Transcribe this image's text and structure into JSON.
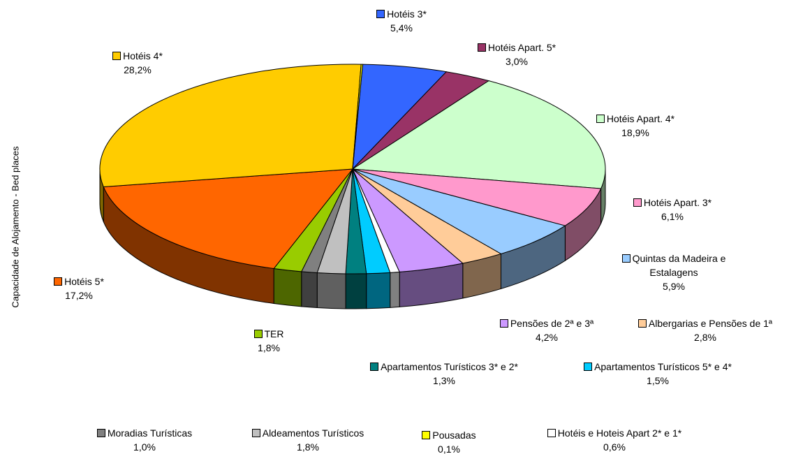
{
  "chart_data": {
    "type": "pie3d",
    "y_axis_label": "Capacidade de Alojamento - Bed places",
    "categories": [
      "Hotéis 3*",
      "Hotéis Apart. 5*",
      "Hotéis Apart. 4*",
      "Hotéis Apart. 3*",
      "Quintas da Madeira e Estalagens",
      "Albergarias e Pensões de 1ª",
      "Pensões de 2ª e 3ª",
      "Hotéis e Hoteis Apart 2* e 1*",
      "Apartamentos Turísticos 5* e 4*",
      "Apartamentos Turísticos 3* e 2*",
      "Aldeamentos Turísticos",
      "Moradias Turísticas",
      "TER",
      "Hotéis 5*",
      "Hotéis 4*",
      "Pousadas"
    ],
    "values": [
      5.4,
      3.0,
      18.9,
      6.1,
      5.9,
      2.8,
      4.2,
      0.6,
      1.5,
      1.3,
      1.8,
      1.0,
      1.8,
      17.2,
      28.2,
      0.1
    ],
    "value_labels": [
      "5,4%",
      "3,0%",
      "18,9%",
      "6,1%",
      "5,9%",
      "2,8%",
      "4,2%",
      "0,6%",
      "1,5%",
      "1,3%",
      "1,8%",
      "1,0%",
      "1,8%",
      "17,2%",
      "28,2%",
      "0,1%"
    ],
    "colors": [
      "#3366ff",
      "#993366",
      "#ccffcc",
      "#ff99cc",
      "#99ccff",
      "#ffcc99",
      "#cc99ff",
      "#ffffff",
      "#00ccff",
      "#008080",
      "#c0c0c0",
      "#808080",
      "#99cc00",
      "#ff6600",
      "#ffcc00",
      "#ffff00"
    ]
  }
}
